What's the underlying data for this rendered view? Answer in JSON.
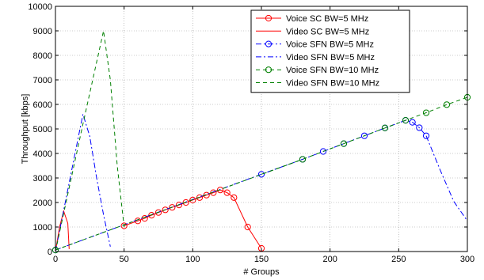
{
  "chart_data": {
    "type": "line",
    "title": "",
    "xlabel": "# Groups",
    "ylabel": "Throughput [kbps]",
    "xlim": [
      0,
      300
    ],
    "ylim": [
      0,
      10000
    ],
    "xticks": [
      0,
      50,
      100,
      150,
      200,
      250,
      300
    ],
    "yticks": [
      0,
      1000,
      2000,
      3000,
      4000,
      5000,
      6000,
      7000,
      8000,
      9000,
      10000
    ],
    "grid": true,
    "legend_position": "top-right",
    "series": [
      {
        "name": "Voice SC BW=5 MHz",
        "color": "#ff0000",
        "line_style": "solid",
        "marker": "circle",
        "x": [
          50,
          60,
          65,
          70,
          75,
          80,
          85,
          90,
          95,
          100,
          105,
          110,
          115,
          120,
          125,
          130,
          140,
          150
        ],
        "y": [
          1050,
          1250,
          1350,
          1480,
          1590,
          1700,
          1800,
          1900,
          2000,
          2100,
          2200,
          2300,
          2400,
          2510,
          2400,
          2200,
          1000,
          130
        ]
      },
      {
        "name": "Video SC BW=5 MHz",
        "color": "#ff0000",
        "line_style": "solid",
        "marker": "none",
        "x": [
          0,
          3,
          6,
          9,
          10
        ],
        "y": [
          0,
          1000,
          1650,
          1150,
          100
        ]
      },
      {
        "name": "Voice SFN BW=5 MHz",
        "color": "#0000ff",
        "line_style": "dashdot",
        "marker": "circle",
        "x": [
          0,
          150,
          180,
          195,
          210,
          225,
          240,
          255,
          260,
          265,
          270
        ],
        "y": [
          60,
          3150,
          3760,
          4080,
          4400,
          4720,
          5040,
          5350,
          5270,
          5050,
          4720
        ]
      },
      {
        "name": "Video SFN BW=5 MHz",
        "color": "#0000ff",
        "line_style": "dashdot",
        "marker": "none",
        "x": [
          0,
          10,
          20,
          25,
          30,
          35,
          40
        ],
        "y": [
          0,
          2800,
          5600,
          4700,
          3000,
          1500,
          200
        ]
      },
      {
        "name": "Voice SFN BW=10 MHz",
        "color": "#008000",
        "line_style": "dashed",
        "marker": "circle",
        "x": [
          0,
          180,
          210,
          240,
          255,
          270,
          285,
          300
        ],
        "y": [
          60,
          3760,
          4400,
          5040,
          5350,
          5660,
          5990,
          6290
        ]
      },
      {
        "name": "Video SFN BW=10 MHz",
        "color": "#008000",
        "line_style": "dashed",
        "marker": "none",
        "x": [
          0,
          10,
          20,
          35,
          40,
          45,
          50
        ],
        "y": [
          0,
          2600,
          5200,
          9000,
          7000,
          3500,
          1000
        ]
      }
    ],
    "extra_lines": [
      {
        "color": "#0000ff",
        "line_style": "dashdot",
        "x": [
          270,
          280,
          290,
          300
        ],
        "y": [
          4720,
          3350,
          2050,
          1250
        ]
      },
      {
        "color": "#008000",
        "line_style": "dashed",
        "x": [
          150,
          180
        ],
        "y": [
          3150,
          3760
        ]
      }
    ]
  }
}
